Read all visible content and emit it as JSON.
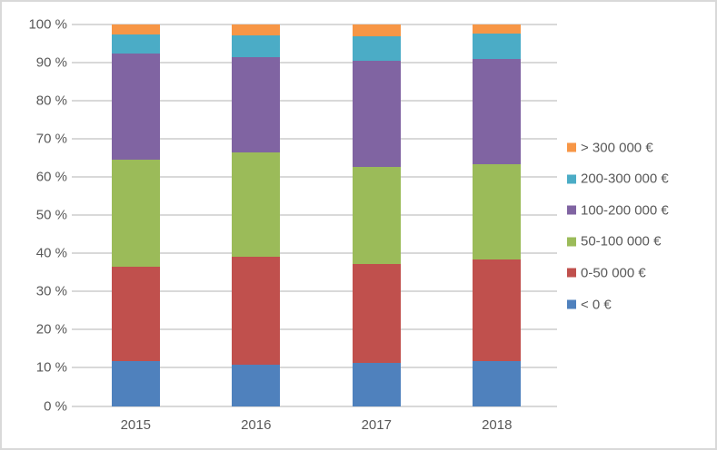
{
  "chart_data": {
    "type": "bar",
    "stacked": true,
    "percent_stacked": true,
    "title": "",
    "xlabel": "",
    "ylabel": "",
    "ylim": [
      0,
      100
    ],
    "grid": true,
    "legend_position": "right",
    "y_ticks": [
      "100 %",
      "90 %",
      "80 %",
      "70 %",
      "60 %",
      "50 %",
      "40 %",
      "30 %",
      "20 %",
      "10 %",
      "0 %"
    ],
    "y_tick_values": [
      100,
      90,
      80,
      70,
      60,
      50,
      40,
      30,
      20,
      10,
      0
    ],
    "categories": [
      "2015",
      "2016",
      "2017",
      "2018"
    ],
    "series": [
      {
        "name": "< 0 €",
        "color": "#4F81BD",
        "values": [
          11.8,
          10.8,
          11.4,
          11.8
        ]
      },
      {
        "name": "0-50 000 €",
        "color": "#C0504D",
        "values": [
          24.7,
          28.2,
          25.7,
          26.6
        ]
      },
      {
        "name": "50-100 000 €",
        "color": "#9BBB59",
        "values": [
          28.0,
          27.4,
          25.6,
          24.8
        ]
      },
      {
        "name": "100-200 000 €",
        "color": "#8064A2",
        "values": [
          27.9,
          25.0,
          27.6,
          27.6
        ]
      },
      {
        "name": "200-300 000 €",
        "color": "#4BACC6",
        "values": [
          4.9,
          5.6,
          6.6,
          6.8
        ]
      },
      {
        "name": "> 300 000 €",
        "color": "#F79646",
        "values": [
          2.7,
          3.0,
          3.1,
          2.4
        ]
      }
    ],
    "legend_order_top_to_bottom": [
      "> 300 000 €",
      "200-300 000 €",
      "100-200 000 €",
      "50-100 000 €",
      "0-50 000 €",
      "< 0 €"
    ],
    "colors": {
      "gridline": "#d9d9d9",
      "axis_text": "#595959",
      "frame_border": "#d9d9d9",
      "background": "#ffffff"
    }
  }
}
